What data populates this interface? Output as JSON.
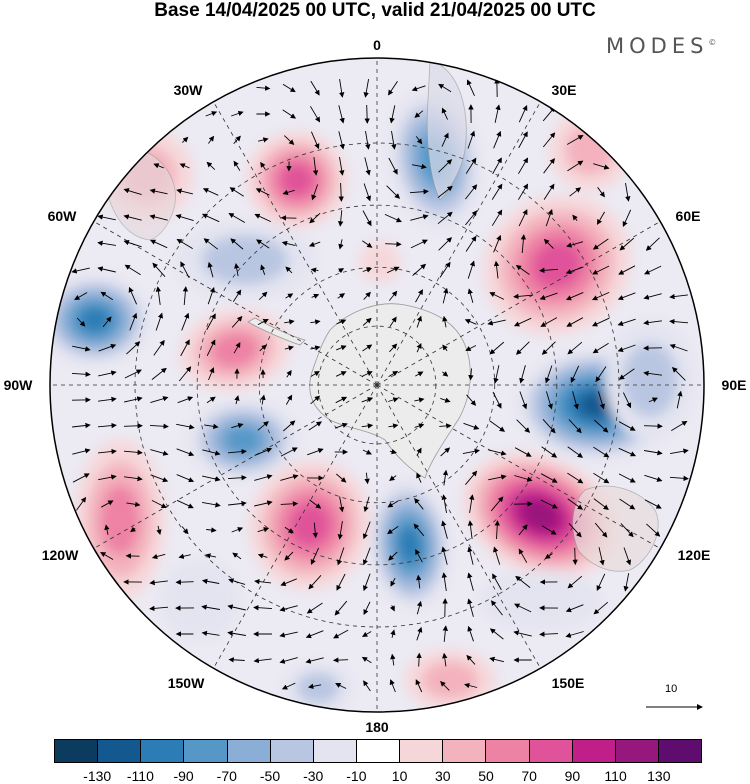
{
  "title": "Base 14/04/2025 00 UTC, valid 21/04/2025 00 UTC",
  "logo": "MODES",
  "logo_mark": "©",
  "map_labels": {
    "lon_0": "0",
    "lon_30e": "30E",
    "lon_60e": "60E",
    "lon_90e": "90E",
    "lon_120e": "120E",
    "lon_150e": "150E",
    "lon_180": "180",
    "lon_150w": "150W",
    "lon_120w": "120W",
    "lon_90w": "90W",
    "lon_60w": "60W",
    "lon_30w": "30W"
  },
  "vector_scale_label": "10",
  "colorbar": {
    "colors": [
      "#0b3b5e",
      "#13588f",
      "#2c7db5",
      "#5598c8",
      "#8aaed6",
      "#b9c6e2",
      "#e3e4f0",
      "#ffffff",
      "#f6d7d9",
      "#f3b2bd",
      "#ee82a4",
      "#e0529a",
      "#c01f8a",
      "#97187c",
      "#5e0d6e"
    ],
    "ticks": [
      "-130",
      "-110",
      "-90",
      "-70",
      "-50",
      "-30",
      "-10",
      "10",
      "30",
      "50",
      "70",
      "90",
      "110",
      "130"
    ]
  }
}
